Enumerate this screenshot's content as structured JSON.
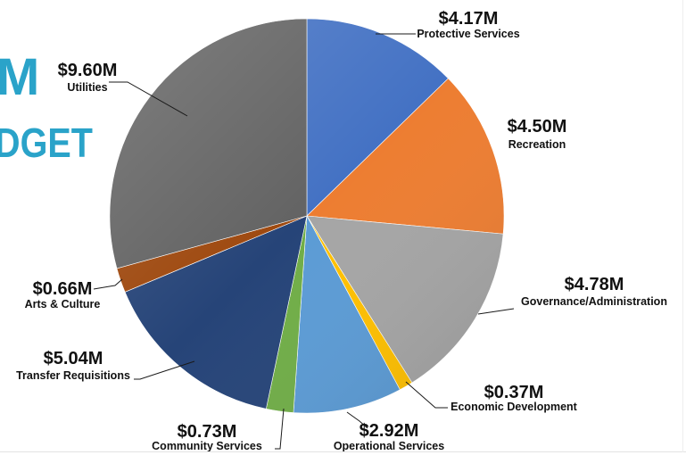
{
  "title_fragments": {
    "line1": "M",
    "line2": "DGET"
  },
  "chart_data": {
    "type": "pie",
    "start": "12 o'clock",
    "direction": "clockwise",
    "slices": [
      {
        "label": "Protective Services",
        "value_label": "$4.17M",
        "value": 4.17,
        "color": "#4472c4"
      },
      {
        "label": "Recreation",
        "value_label": "$4.50M",
        "value": 4.5,
        "color": "#ed7d31"
      },
      {
        "label": "Governance/Administration",
        "value_label": "$4.78M",
        "value": 4.78,
        "color": "#a5a5a5"
      },
      {
        "label": "Economic Development",
        "value_label": "$0.37M",
        "value": 0.37,
        "color": "#ffc000"
      },
      {
        "label": "Operational Services",
        "value_label": "$2.92M",
        "value": 2.92,
        "color": "#5b9bd5"
      },
      {
        "label": "Community Services",
        "value_label": "$0.73M",
        "value": 0.73,
        "color": "#70ad47"
      },
      {
        "label": "Transfer Requisitions",
        "value_label": "$5.04M",
        "value": 5.04,
        "color": "#264478"
      },
      {
        "label": "Arts & Culture",
        "value_label": "$0.66M",
        "value": 0.66,
        "color": "#9e480e"
      },
      {
        "label": "Utilities",
        "value_label": "$9.60M",
        "value": 9.6,
        "color": "#636363"
      }
    ]
  }
}
